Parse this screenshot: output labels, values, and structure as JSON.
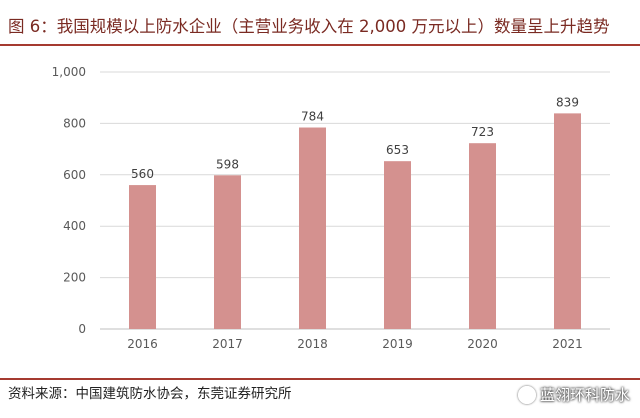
{
  "title": "图 6：我国规模以上防水企业（主营业务收入在 2,000 万元以上）数量呈上升趋势",
  "source": "资料来源：中国建筑防水协会，东莞证券研究所",
  "watermark": "蓝翎环科防水",
  "colors": {
    "bar": "#d4918f",
    "grid": "#d9d9d9",
    "axis": "#bfbfbf",
    "rule": "#a53a30"
  },
  "chart_data": {
    "type": "bar",
    "categories": [
      "2016",
      "2017",
      "2018",
      "2019",
      "2020",
      "2021"
    ],
    "values": [
      560,
      598,
      784,
      653,
      723,
      839
    ],
    "data_labels": [
      "560",
      "598",
      "784",
      "653",
      "723",
      "839"
    ],
    "y_ticks": [
      "0",
      "200",
      "400",
      "600",
      "800",
      "1,000"
    ],
    "ylim": [
      0,
      1000
    ],
    "grid": true,
    "legend": "none"
  }
}
